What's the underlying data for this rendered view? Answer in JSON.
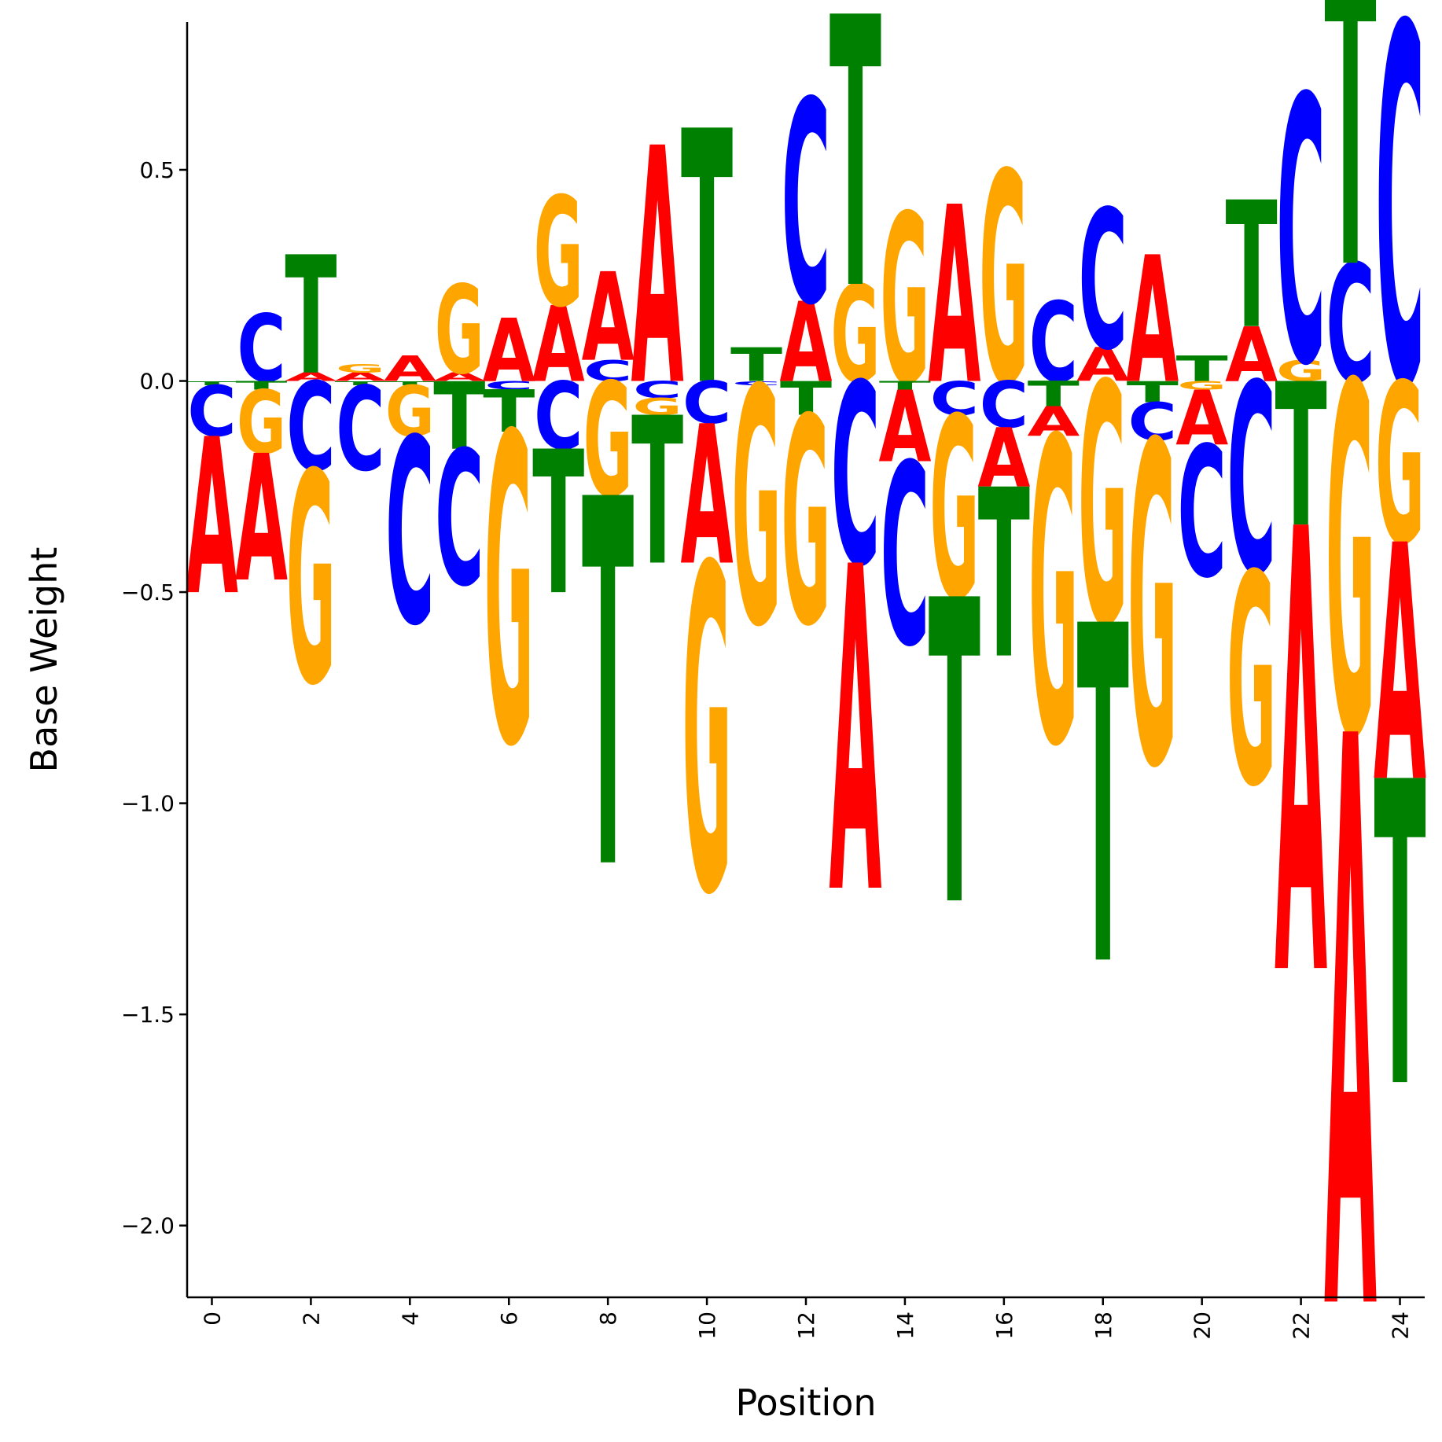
{
  "chart_data": {
    "type": "sequence-logo",
    "xlabel": "Position",
    "ylabel": "Base Weight",
    "xlim": [
      -0.5,
      24.5
    ],
    "ylim": [
      -2.17,
      0.85
    ],
    "x_ticks": [
      0,
      2,
      4,
      6,
      8,
      10,
      12,
      14,
      16,
      18,
      20,
      22,
      24
    ],
    "y_ticks": [
      0.5,
      0.0,
      -0.5,
      -1.0,
      -1.5,
      -2.0
    ],
    "y_tick_labels": [
      "0.5",
      "0.0",
      "−0.5",
      "−1.0",
      "−1.5",
      "−2.0"
    ],
    "grid": false,
    "colors": {
      "A": "#ff0000",
      "C": "#0000ff",
      "G": "#ffa500",
      "T": "#008000"
    },
    "weights": [
      {
        "A": -0.37,
        "C": -0.12,
        "G": 0.0,
        "T": -0.01
      },
      {
        "A": -0.3,
        "C": 0.16,
        "G": -0.15,
        "T": -0.02
      },
      {
        "A": 0.02,
        "C": -0.21,
        "G": -0.5,
        "T": 0.28
      },
      {
        "A": 0.02,
        "C": -0.2,
        "G": 0.02,
        "T": -0.01
      },
      {
        "A": 0.06,
        "C": -0.44,
        "G": -0.12,
        "T": -0.01
      },
      {
        "A": 0.02,
        "C": -0.32,
        "G": 0.21,
        "T": -0.16
      },
      {
        "A": 0.15,
        "C": -0.02,
        "G": -0.73,
        "T": -0.1
      },
      {
        "A": 0.18,
        "C": -0.16,
        "G": 0.26,
        "T": -0.34
      },
      {
        "A": 0.21,
        "C": 0.05,
        "G": -0.27,
        "T": -0.87
      },
      {
        "A": 0.56,
        "C": -0.04,
        "G": -0.04,
        "T": -0.35
      },
      {
        "A": -0.33,
        "C": -0.1,
        "G": -0.77,
        "T": 0.6
      },
      {
        "A": 0.0,
        "C": -0.01,
        "G": -0.56,
        "T": 0.08
      },
      {
        "A": 0.19,
        "C": 0.48,
        "G": -0.49,
        "T": -0.08
      },
      {
        "A": -0.77,
        "C": -0.43,
        "G": 0.23,
        "T": 0.64
      },
      {
        "A": -0.17,
        "C": -0.43,
        "G": 0.4,
        "T": -0.02
      },
      {
        "A": 0.42,
        "C": -0.08,
        "G": -0.43,
        "T": -0.72
      },
      {
        "A": -0.14,
        "C": -0.11,
        "G": 0.5,
        "T": -0.4
      },
      {
        "A": -0.07,
        "C": 0.19,
        "G": -0.72,
        "T": -0.06
      },
      {
        "A": 0.08,
        "C": 0.33,
        "G": -0.57,
        "T": -0.8
      },
      {
        "A": 0.3,
        "C": -0.09,
        "G": -0.76,
        "T": -0.05
      },
      {
        "A": -0.13,
        "C": -0.31,
        "G": -0.02,
        "T": 0.06
      },
      {
        "A": 0.13,
        "C": -0.45,
        "G": -0.5,
        "T": 0.3
      },
      {
        "A": -1.05,
        "C": 0.63,
        "G": 0.05,
        "T": -0.34
      },
      {
        "A": -1.35,
        "C": 0.28,
        "G": -0.83,
        "T": 0.71
      },
      {
        "A": -0.56,
        "C": 0.85,
        "G": -0.38,
        "T": -0.72
      }
    ]
  }
}
